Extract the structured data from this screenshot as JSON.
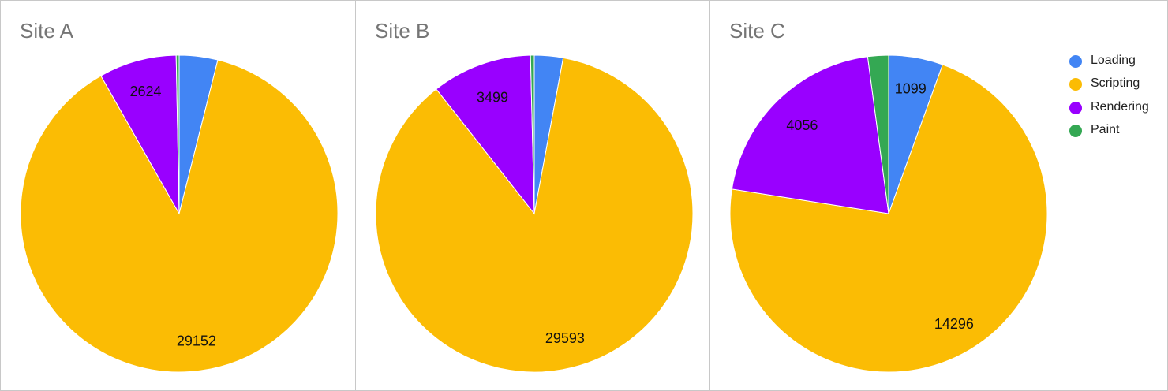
{
  "colors": {
    "Loading": "#4285f4",
    "Scripting": "#fbbc04",
    "Rendering": "#9900ff",
    "Paint": "#34a853"
  },
  "legend": {
    "items": [
      {
        "label": "Loading",
        "color": "#4285f4"
      },
      {
        "label": "Scripting",
        "color": "#fbbc04"
      },
      {
        "label": "Rendering",
        "color": "#9900ff"
      },
      {
        "label": "Paint",
        "color": "#34a853"
      }
    ]
  },
  "chart_data": [
    {
      "type": "pie",
      "title": "Site A",
      "categories": [
        "Loading",
        "Scripting",
        "Rendering",
        "Paint"
      ],
      "values": [
        1300,
        29152,
        2624,
        100
      ],
      "data_labels": [
        "",
        "29152",
        "2624",
        ""
      ]
    },
    {
      "type": "pie",
      "title": "Site B",
      "categories": [
        "Loading",
        "Scripting",
        "Rendering",
        "Paint"
      ],
      "values": [
        1000,
        29593,
        3499,
        130
      ],
      "data_labels": [
        "",
        "29593",
        "3499",
        ""
      ]
    },
    {
      "type": "pie",
      "title": "Site C",
      "categories": [
        "Loading",
        "Scripting",
        "Rendering",
        "Paint"
      ],
      "values": [
        1099,
        14296,
        4056,
        420
      ],
      "data_labels": [
        "1099",
        "14296",
        "4056",
        ""
      ]
    }
  ]
}
